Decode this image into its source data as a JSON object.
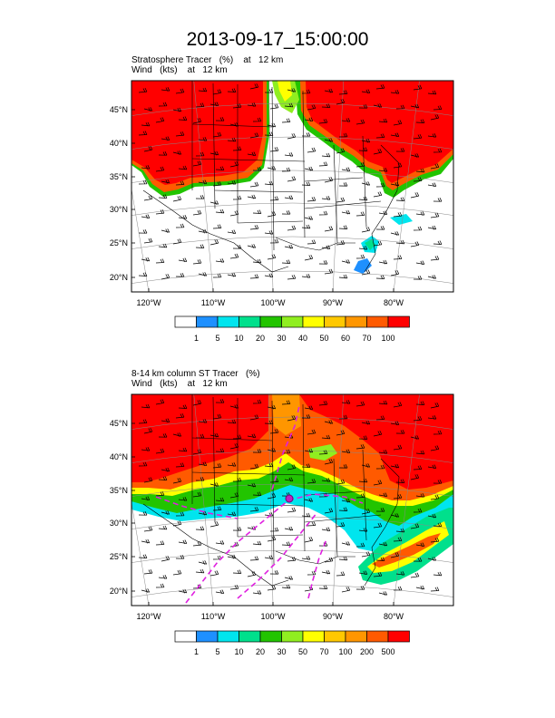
{
  "title": "2013-09-17_15:00:00",
  "panels": [
    {
      "subtitle1": "Stratosphere Tracer   (%)    at   12 km",
      "subtitle2": "Wind   (kts)    at   12 km"
    },
    {
      "subtitle1": "8-14 km column ST Tracer   (%)",
      "subtitle2": "Wind   (kts)    at   12 km"
    }
  ],
  "chart_data": [
    {
      "type": "heatmap",
      "title": "Stratosphere Tracer   (%)    at   12 km",
      "overlay": "Wind   (kts)    at   12 km",
      "lat_ticks": [
        "45°N",
        "40°N",
        "35°N",
        "30°N",
        "25°N",
        "20°N"
      ],
      "lon_ticks": [
        "120°W",
        "110°W",
        "100°W",
        "90°W",
        "80°W"
      ],
      "colorbar_levels": [
        "1",
        "5",
        "10",
        "20",
        "30",
        "40",
        "50",
        "60",
        "70",
        "100"
      ],
      "colorbar_colors": [
        "#ffffff",
        "#1e90ff",
        "#00e5ee",
        "#00e08c",
        "#22c400",
        "#90ee20",
        "#ffff00",
        "#ffc800",
        "#ff9600",
        "#ff5a00",
        "#ff0000"
      ]
    },
    {
      "type": "heatmap",
      "title": "8-14 km column ST Tracer   (%)",
      "overlay": "Wind   (kts)    at   12 km",
      "lat_ticks": [
        "45°N",
        "40°N",
        "35°N",
        "30°N",
        "25°N",
        "20°N"
      ],
      "lon_ticks": [
        "120°W",
        "110°W",
        "100°W",
        "90°W",
        "80°W"
      ],
      "colorbar_levels": [
        "1",
        "5",
        "10",
        "20",
        "30",
        "50",
        "70",
        "100",
        "200",
        "500"
      ],
      "colorbar_colors": [
        "#ffffff",
        "#1e90ff",
        "#00e5ee",
        "#00e08c",
        "#22c400",
        "#90ee20",
        "#ffff00",
        "#ffc800",
        "#ff9600",
        "#ff5a00",
        "#ff0000"
      ]
    }
  ]
}
